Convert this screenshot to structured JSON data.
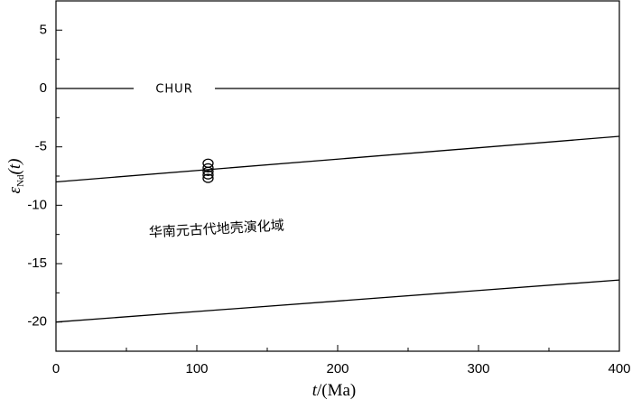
{
  "chart_data": {
    "type": "scatter",
    "x": [
      108,
      108,
      108,
      108,
      108
    ],
    "values": [
      -6.4,
      -6.8,
      -7.1,
      -7.4,
      -7.7
    ],
    "color": "#000000",
    "lines": [
      {
        "x": [
          0,
          400
        ],
        "y": [
          0,
          0
        ]
      },
      {
        "x": [
          0,
          400
        ],
        "y": [
          -8,
          -4.1
        ]
      },
      {
        "x": [
          0,
          400
        ],
        "y": [
          -20,
          -16.4
        ]
      }
    ],
    "xlim": [
      0,
      400
    ],
    "ylim": [
      -22.5,
      7.5
    ],
    "xticks": [
      0,
      100,
      200,
      300,
      400
    ],
    "yticks": [
      -20,
      -15,
      -10,
      -5,
      0,
      5
    ],
    "xminorticks": [
      50,
      150,
      250,
      350
    ],
    "yminorticks": [
      -17.5,
      -12.5,
      -7.5,
      -2.5,
      2.5
    ],
    "xlabel": [
      "t",
      "/(Ma)"
    ],
    "ylabel": [
      "ε",
      "Nd",
      "(t)"
    ],
    "annotations": [
      {
        "text": "CHUR",
        "x": 84,
        "y": 0
      },
      {
        "text": "华南元古代地壳演化域",
        "x": 114,
        "y": -12.1
      }
    ]
  }
}
